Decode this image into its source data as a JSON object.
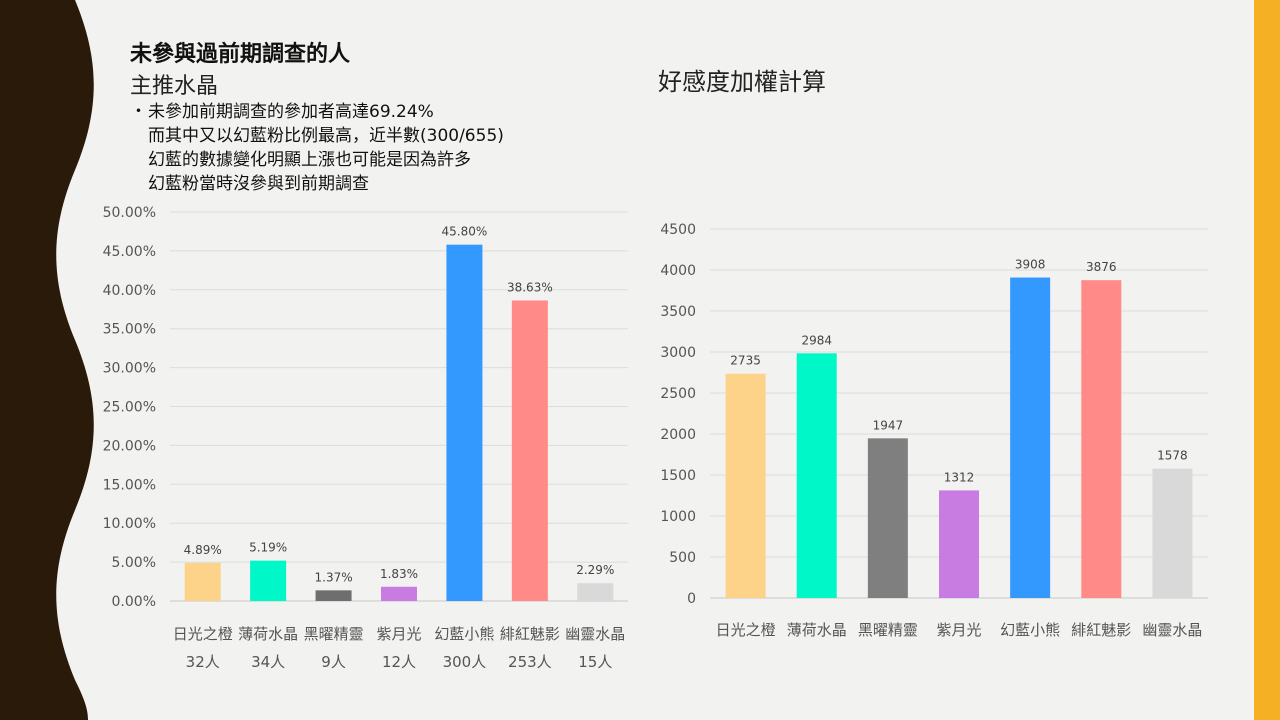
{
  "left_panel": {
    "heading": "未參與過前期調查的人",
    "subheading": "主推水晶",
    "notes": [
      "未參加前期調查的參加者高達69.24%",
      "而其中又以幻藍粉比例最高，近半數(300/655)",
      "幻藍的數據變化明顯上漲也可能是因為許多",
      "幻藍粉當時沒參與到前期調查"
    ],
    "bullet": "・"
  },
  "right_panel": {
    "title": "好感度加權計算"
  },
  "chart_data": [
    {
      "type": "bar",
      "categories": [
        "日光之橙",
        "薄荷水晶",
        "黑曜精靈",
        "紫月光",
        "幻藍小熊",
        "緋紅魅影",
        "幽靈水晶"
      ],
      "category_counts": [
        "32人",
        "34人",
        "9人",
        "12人",
        "300人",
        "253人",
        "15人"
      ],
      "values": [
        4.89,
        5.19,
        1.37,
        1.83,
        45.8,
        38.63,
        2.29
      ],
      "data_labels": [
        "4.89%",
        "5.19%",
        "1.37%",
        "1.83%",
        "45.80%",
        "38.63%",
        "2.29%"
      ],
      "colors": [
        "#fdd38a",
        "#00f7c8",
        "#6e6e6e",
        "#c87be0",
        "#3399ff",
        "#ff8a88",
        "#d9d9d9"
      ],
      "ylim": [
        0,
        50
      ],
      "yticks": [
        "0.00%",
        "5.00%",
        "10.00%",
        "15.00%",
        "20.00%",
        "25.00%",
        "30.00%",
        "35.00%",
        "40.00%",
        "45.00%",
        "50.00%"
      ],
      "grid": true,
      "title": "",
      "xlabel": "",
      "ylabel": ""
    },
    {
      "type": "bar",
      "categories": [
        "日光之橙",
        "薄荷水晶",
        "黑曜精靈",
        "紫月光",
        "幻藍小熊",
        "緋紅魅影",
        "幽靈水晶"
      ],
      "values": [
        2735,
        2984,
        1947,
        1312,
        3908,
        3876,
        1578
      ],
      "data_labels": [
        "2735",
        "2984",
        "1947",
        "1312",
        "3908",
        "3876",
        "1578"
      ],
      "colors": [
        "#fdd38a",
        "#00f7c8",
        "#7f7f7f",
        "#c87be0",
        "#3399ff",
        "#ff8a88",
        "#d9d9d9"
      ],
      "ylim": [
        0,
        4500
      ],
      "yticks": [
        "0",
        "500",
        "1000",
        "1500",
        "2000",
        "2500",
        "3000",
        "3500",
        "4000",
        "4500"
      ],
      "grid": true,
      "title": "",
      "xlabel": "",
      "ylabel": ""
    }
  ],
  "decor": {
    "left_band_color": "#2a1a0a",
    "right_band_color": "#f5b023",
    "background": "#f2f2f0"
  }
}
